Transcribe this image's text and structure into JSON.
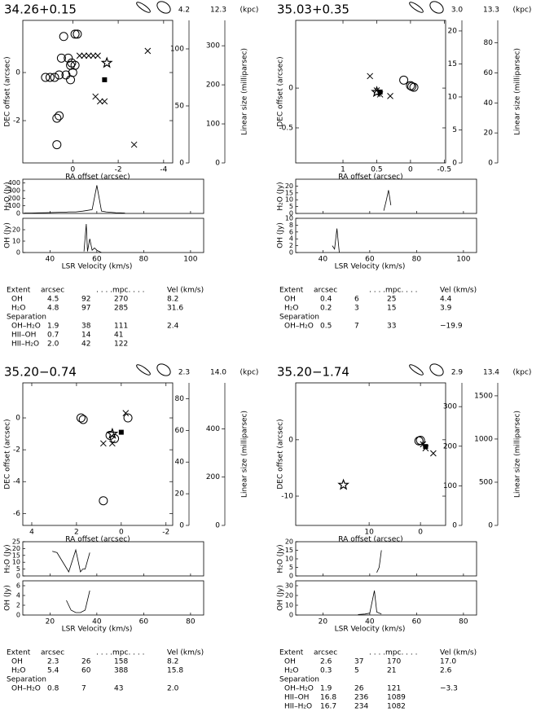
{
  "chart_data": [
    {
      "type": "panel",
      "sky": {
        "type": "scatter",
        "title": "34.26+0.15",
        "distances": [
          "4.2",
          "12.3"
        ],
        "distance_unit": "(kpc)",
        "x_label": "RA offset (arcsec)",
        "y_label": "DEC offset (arcsec)",
        "y2_label": "Linear size (milliparsec)",
        "xlim": [
          2.2,
          -4.4
        ],
        "xticks": [
          0,
          -2,
          -4
        ],
        "ylim": [
          -3.76,
          2.17
        ],
        "yticks": [
          -2,
          0
        ],
        "y2lim": [
          0,
          125
        ],
        "y2ticks": [
          0,
          50,
          100
        ],
        "y3lim": [
          0,
          365
        ],
        "y3ticks": [
          0,
          100,
          200,
          300
        ],
        "series": [
          {
            "marker": "circle",
            "color": "#000000",
            "x": [
              0.4,
              -0.1,
              -0.2,
              0.5,
              0.2,
              0.1,
              0.05,
              -0.1,
              0.0,
              0.3,
              0.6,
              0.8,
              1.0,
              1.2,
              0.1,
              0.6,
              0.7,
              0.7
            ],
            "values": [
              1.5,
              1.6,
              1.6,
              0.6,
              0.6,
              0.3,
              0.4,
              0.3,
              0.0,
              -0.1,
              -0.1,
              -0.2,
              -0.2,
              -0.2,
              -0.3,
              -1.8,
              -1.9,
              -3.0
            ]
          },
          {
            "marker": "cross",
            "color": "#000000",
            "x": [
              -0.3,
              -0.5,
              -0.7,
              -0.9,
              -1.1,
              -3.3,
              -1.0,
              -1.2,
              -1.4,
              -2.7
            ],
            "values": [
              0.7,
              0.7,
              0.7,
              0.7,
              0.7,
              0.9,
              -1.0,
              -1.2,
              -1.2,
              -3.0
            ]
          },
          {
            "marker": "star",
            "color": "#000000",
            "x": [
              -1.5
            ],
            "values": [
              0.4
            ]
          },
          {
            "marker": "square",
            "color": "#000000",
            "x": [
              -1.4
            ],
            "values": [
              -0.3
            ]
          }
        ]
      },
      "spectra": [
        {
          "type": "line",
          "y_label": "H₂O (Jy)",
          "xlim": [
            28.4,
            105.6
          ],
          "xticks": [
            40,
            60,
            80,
            100
          ],
          "ylim": [
            0,
            450
          ],
          "yticks": [
            0,
            100,
            200,
            300,
            400
          ],
          "x": [
            29,
            32,
            35,
            38,
            41,
            44,
            46,
            48,
            51,
            54,
            56,
            58,
            60,
            62,
            64,
            66,
            68,
            70,
            72
          ],
          "values": [
            5,
            5,
            8,
            10,
            12,
            15,
            15,
            20,
            20,
            30,
            40,
            50,
            370,
            30,
            20,
            15,
            10,
            8,
            5
          ]
        },
        {
          "type": "line",
          "y_label": "OH (Jy)",
          "x_label": "LSR Velocity (km/s)",
          "xlim": [
            28.4,
            105.6
          ],
          "xticks": [
            40,
            60,
            80,
            100
          ],
          "ylim": [
            0,
            30
          ],
          "yticks": [
            0,
            10,
            20
          ],
          "x": [
            54.5,
            55.5,
            56,
            57,
            58,
            59,
            60,
            61,
            62
          ],
          "values": [
            1,
            25,
            1,
            12,
            2,
            4,
            2,
            1,
            0
          ]
        }
      ],
      "table": {
        "header": [
          "Extent",
          "arcsec",
          ". . . .mpc. . . .",
          "Vel (km/s)"
        ],
        "rows": [
          [
            "OH",
            "4.5",
            "92",
            "270",
            "8.2"
          ],
          [
            "H₂O",
            "4.8",
            "97",
            "285",
            "31.6"
          ],
          [
            "Separation"
          ],
          [
            "OH–H₂O",
            "1.9",
            "38",
            "111",
            "2.4"
          ],
          [
            "HII–OH",
            "0.7",
            "14",
            "41"
          ],
          [
            "HII–H₂O",
            "2.0",
            "42",
            "122"
          ]
        ]
      }
    },
    {
      "type": "panel",
      "sky": {
        "type": "scatter",
        "title": "35.03+0.35",
        "distances": [
          "3.0",
          "13.3"
        ],
        "distance_unit": "(kpc)",
        "x_label": "RA offset (arcsec)",
        "y_label": "DEC offset (arcsec)",
        "y2_label": "Linear size (milliparsec)",
        "xlim": [
          1.7,
          -0.52
        ],
        "xticks": [
          1,
          0.5,
          0,
          -0.5
        ],
        "ylim": [
          -0.94,
          0.85
        ],
        "yticks": [
          -0.5,
          0
        ],
        "y2lim": [
          0,
          21.6
        ],
        "y2ticks": [
          0,
          5,
          10,
          15,
          20
        ],
        "y3lim": [
          0,
          95
        ],
        "y3ticks": [
          0,
          20,
          40,
          60,
          80
        ],
        "series": [
          {
            "marker": "circle",
            "color": "#000000",
            "x": [
              0.1,
              0.0,
              -0.02,
              -0.05
            ],
            "values": [
              0.1,
              0.03,
              0.02,
              0.01
            ]
          },
          {
            "marker": "cross",
            "color": "#000000",
            "x": [
              0.6,
              0.5,
              0.45,
              0.3
            ],
            "values": [
              0.15,
              -0.03,
              -0.08,
              -0.1
            ]
          },
          {
            "marker": "star",
            "color": "#000000",
            "x": [
              0.5
            ],
            "values": [
              -0.05
            ]
          },
          {
            "marker": "square",
            "color": "#000000",
            "x": [
              0.45
            ],
            "values": [
              -0.05
            ]
          }
        ]
      },
      "spectra": [
        {
          "type": "line",
          "y_label": "H₂O (Jy)",
          "xlim": [
            28.4,
            105.6
          ],
          "xticks": [
            40,
            60,
            80,
            100
          ],
          "ylim": [
            0,
            25
          ],
          "yticks": [
            0,
            5,
            10,
            15,
            20
          ],
          "x": [
            66,
            67,
            68,
            69
          ],
          "values": [
            2,
            9,
            17,
            6
          ]
        },
        {
          "type": "line",
          "y_label": "OH (Jy)",
          "x_label": "LSR Velocity (km/s)",
          "xlim": [
            28.4,
            105.6
          ],
          "xticks": [
            40,
            60,
            80,
            100
          ],
          "ylim": [
            0,
            10
          ],
          "yticks": [
            0,
            2,
            4,
            6,
            8,
            10
          ],
          "x": [
            44,
            45,
            46,
            47
          ],
          "values": [
            2,
            1,
            7,
            0
          ]
        }
      ],
      "table": {
        "header": [
          "Extent",
          "arcsec",
          ". . . .mpc. . . .",
          "Vel (km/s)"
        ],
        "rows": [
          [
            "OH",
            "0.4",
            "6",
            "25",
            "4.4"
          ],
          [
            "H₂O",
            "0.2",
            "3",
            "15",
            "3.9"
          ],
          [
            "Separation"
          ],
          [
            "OH–H₂O",
            "0.5",
            "7",
            "33",
            "−19.9"
          ]
        ]
      }
    },
    {
      "type": "panel",
      "sky": {
        "type": "scatter",
        "title": "35.20−0.74",
        "distances": [
          "2.3",
          "14.0"
        ],
        "distance_unit": "(kpc)",
        "x_label": "RA offset (arcsec)",
        "y_label": "DEC offset (arcsec)",
        "y2_label": "Linear size (milliparsec)",
        "xlim": [
          4.4,
          -2.3
        ],
        "xticks": [
          4,
          2,
          0,
          -2
        ],
        "ylim": [
          -6.75,
          2.2
        ],
        "yticks": [
          -6,
          -4,
          -2,
          0
        ],
        "y2lim": [
          0,
          90
        ],
        "y2ticks": [
          0,
          20,
          40,
          60,
          80
        ],
        "y3lim": [
          0,
          590
        ],
        "y3ticks": [
          0,
          200,
          400
        ],
        "series": [
          {
            "marker": "circle",
            "color": "#000000",
            "x": [
              1.8,
              1.7,
              -0.3,
              0.3,
              0.5,
              0.8
            ],
            "values": [
              0.0,
              -0.1,
              0.0,
              -1.3,
              -1.1,
              -5.2
            ]
          },
          {
            "marker": "cross",
            "color": "#000000",
            "x": [
              -0.2,
              0.4,
              0.8
            ],
            "values": [
              0.3,
              -1.6,
              -1.6
            ]
          },
          {
            "marker": "star",
            "color": "#000000",
            "x": [
              0.4
            ],
            "values": [
              -1.0
            ]
          },
          {
            "marker": "square",
            "color": "#000000",
            "x": [
              0.0
            ],
            "values": [
              -0.9
            ]
          }
        ]
      },
      "spectra": [
        {
          "type": "line",
          "y_label": "H₂O (Jy)",
          "xlim": [
            8.4,
            85.6
          ],
          "xticks": [
            20,
            40,
            60,
            80
          ],
          "ylim": [
            0,
            25
          ],
          "yticks": [
            0,
            5,
            10,
            15,
            20,
            25
          ],
          "x": [
            21,
            23,
            28,
            31,
            33,
            34,
            35,
            37
          ],
          "values": [
            18,
            17,
            3,
            19,
            3,
            5,
            5,
            17
          ]
        },
        {
          "type": "line",
          "y_label": "OH (Jy)",
          "x_label": "LSR Velocity (km/s)",
          "xlim": [
            8.4,
            85.6
          ],
          "xticks": [
            20,
            40,
            60,
            80
          ],
          "ylim": [
            0,
            7
          ],
          "yticks": [
            0,
            2,
            4,
            6
          ],
          "x": [
            27,
            29,
            31,
            33,
            35,
            37
          ],
          "values": [
            3,
            1,
            0.5,
            0.5,
            1,
            5
          ]
        }
      ],
      "table": {
        "header": [
          "Extent",
          "arcsec",
          ". . . .mpc. . . .",
          "Vel (km/s)"
        ],
        "rows": [
          [
            "OH",
            "2.3",
            "26",
            "158",
            "8.2"
          ],
          [
            "H₂O",
            "5.4",
            "60",
            "388",
            "15.8"
          ],
          [
            "Separation"
          ],
          [
            "OH–H₂O",
            "0.8",
            "7",
            "43",
            "2.0"
          ]
        ]
      }
    },
    {
      "type": "panel",
      "sky": {
        "type": "scatter",
        "title": "35.20−1.74",
        "distances": [
          "2.9",
          "13.4"
        ],
        "distance_unit": "(kpc)",
        "x_label": "RA offset (arcsec)",
        "y_label": "DEC offset (arcsec)",
        "y2_label": "Linear size (milliparsec)",
        "xlim": [
          24.3,
          -4.9
        ],
        "xticks": [
          10,
          0
        ],
        "ylim": [
          -15.2,
          10.1
        ],
        "yticks": [
          -10,
          0
        ],
        "y2lim": [
          0,
          360
        ],
        "y2ticks": [
          0,
          100,
          200,
          300
        ],
        "y3lim": [
          0,
          1650
        ],
        "y3ticks": [
          0,
          500,
          1000,
          1500
        ],
        "series": [
          {
            "marker": "circle",
            "color": "#000000",
            "x": [
              0.3,
              0.0
            ],
            "values": [
              -0.2,
              -0.1
            ]
          },
          {
            "marker": "cross",
            "color": "#000000",
            "x": [
              -0.5,
              -1,
              -2.5
            ],
            "values": [
              -0.8,
              -1.5,
              -2.4
            ]
          },
          {
            "marker": "star",
            "color": "#000000",
            "x": [
              15
            ],
            "values": [
              -8
            ]
          },
          {
            "marker": "square",
            "color": "#000000",
            "x": [
              -1.0
            ],
            "values": [
              -1.2
            ]
          }
        ]
      },
      "spectra": [
        {
          "type": "line",
          "y_label": "H₂O (Jy)",
          "xlim": [
            8.4,
            85.6
          ],
          "xticks": [
            20,
            40,
            60,
            80
          ],
          "ylim": [
            0,
            20
          ],
          "yticks": [
            0,
            5,
            10,
            15,
            20
          ],
          "x": [
            43,
            44,
            45
          ],
          "values": [
            2,
            5,
            15
          ]
        },
        {
          "type": "line",
          "y_label": "OH (Jy)",
          "x_label": "LSR Velocity (km/s)",
          "xlim": [
            8.4,
            85.6
          ],
          "xticks": [
            20,
            40,
            60,
            80
          ],
          "ylim": [
            0,
            35
          ],
          "yticks": [
            0,
            10,
            20,
            30
          ],
          "x": [
            35,
            38,
            40,
            42,
            43,
            45
          ],
          "values": [
            0.5,
            1,
            2,
            25,
            3,
            1
          ]
        }
      ],
      "table": {
        "header": [
          "Extent",
          "arcsec",
          ". . . .mpc. . . .",
          "Vel (km/s)"
        ],
        "rows": [
          [
            "OH",
            "2.6",
            "37",
            "170",
            "17.0"
          ],
          [
            "H₂O",
            "0.3",
            "5",
            "21",
            "2.6"
          ],
          [
            "Separation"
          ],
          [
            "OH–H₂O",
            "1.9",
            "26",
            "121",
            "−3.3"
          ],
          [
            "HII–OH",
            "16.8",
            "236",
            "1089"
          ],
          [
            "HII–H₂O",
            "16.7",
            "234",
            "1082"
          ]
        ]
      }
    }
  ]
}
